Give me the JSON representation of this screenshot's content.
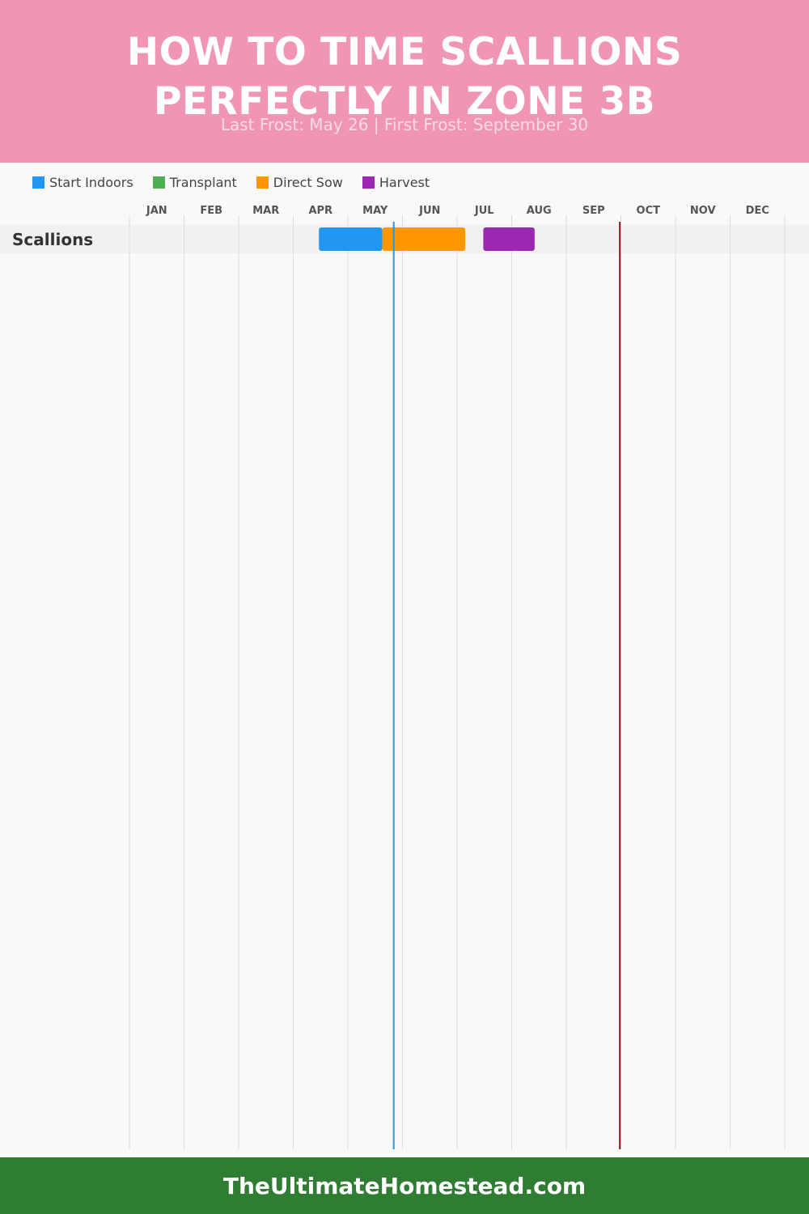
{
  "header": {
    "title_line1": "HOW TO TIME SCALLIONS",
    "title_line2": "PERFECTLY IN ZONE 3B",
    "subtitle": "Last Frost: May 26 | First Frost: September 30"
  },
  "legend": [
    {
      "label": "Start Indoors",
      "color": "#2196f3"
    },
    {
      "label": "Transplant",
      "color": "#4caf50"
    },
    {
      "label": "Direct Sow",
      "color": "#ff9800"
    },
    {
      "label": "Harvest",
      "color": "#9c27b0"
    }
  ],
  "chart_data": {
    "type": "gantt",
    "months": [
      "JAN",
      "FEB",
      "MAR",
      "APR",
      "MAY",
      "JUN",
      "JUL",
      "AUG",
      "SEP",
      "OCT",
      "NOV",
      "DEC"
    ],
    "x_range_months": [
      0,
      12
    ],
    "crops": [
      {
        "name": "Scallions",
        "bars": [
          {
            "activity": "Start Indoors",
            "start_month": 3.47,
            "end_month": 4.63,
            "color": "#2196f3"
          },
          {
            "activity": "Direct Sow",
            "start_month": 4.63,
            "end_month": 6.15,
            "color": "#ff9800"
          },
          {
            "activity": "Harvest",
            "start_month": 6.48,
            "end_month": 7.42,
            "color": "#9c27b0"
          }
        ]
      }
    ],
    "frost_lines": [
      {
        "label": "Last Frost: May 26",
        "month": 4.84,
        "color": "#2196f3"
      },
      {
        "label": "First Frost: September 30",
        "month": 8.98,
        "color": "#8b1a1a"
      }
    ],
    "grid": true
  },
  "footer": {
    "site": "TheUltimateHomestead.com"
  }
}
